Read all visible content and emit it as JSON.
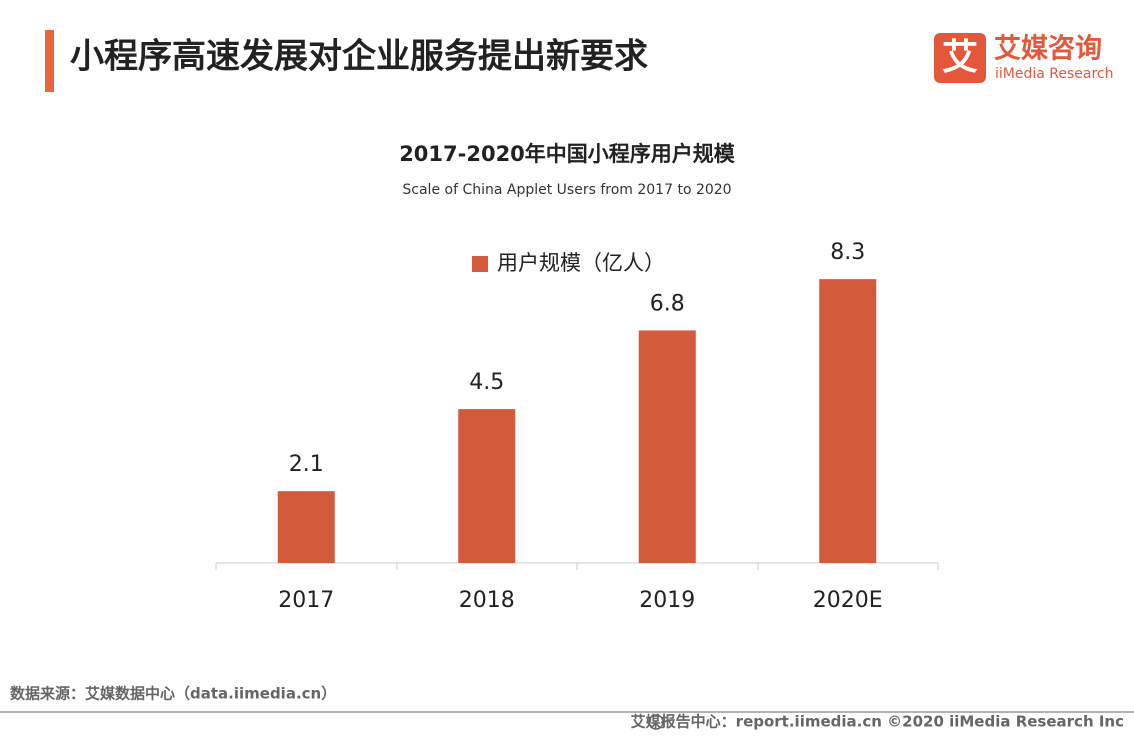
{
  "header": {
    "title": "小程序高速发展对企业服务提出新要求",
    "logo_icon": "艾",
    "logo_name": "艾媒咨询",
    "logo_en": "iiMedia Research"
  },
  "chart_data": {
    "type": "bar",
    "title": "2017-2020年中国小程序用户规模",
    "subtitle": "Scale of China Applet Users from 2017 to 2020",
    "categories": [
      "2017",
      "2018",
      "2019",
      "2020E"
    ],
    "series": [
      {
        "name": "用户规模（亿人）",
        "color": "#d35a3a",
        "values": [
          2.1,
          4.5,
          6.8,
          8.3
        ]
      }
    ]
  },
  "footer": {
    "source": "数据来源：艾媒数据中心（data.iimedia.cn）",
    "credit": "艾媒报告中心：report.iimedia.cn   ©2020  iiMedia Research  Inc"
  }
}
